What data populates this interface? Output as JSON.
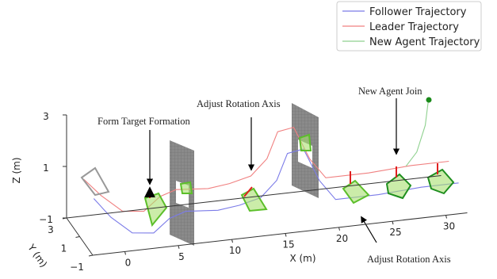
{
  "chart_data": {
    "type": "line3d",
    "xlabel": "X (m)",
    "ylabel": "Y (m)",
    "zlabel": "Z (m)",
    "xlim": [
      -3,
      32
    ],
    "ylim": [
      -1,
      3
    ],
    "zlim": [
      -1,
      3
    ],
    "xticks": [
      0,
      5,
      10,
      15,
      20,
      25,
      30
    ],
    "yticks": [
      {
        "value": -1,
        "label": "−1"
      },
      1,
      3
    ],
    "zticks": [
      {
        "value": -1,
        "label": "−1"
      },
      1,
      3
    ],
    "legend": "upper right",
    "series": [
      {
        "name": "Follower Trajectory",
        "color": "#7b7be8",
        "x": [
          -2.6,
          -1,
          1,
          3,
          4.5,
          6,
          9,
          11,
          13,
          14.5,
          15.5,
          17,
          18.5,
          20,
          24,
          28,
          31.5
        ],
        "y": [
          -0.5,
          -0.5,
          -0.5,
          -0.5,
          -0.5,
          -0.5,
          -0.5,
          -0.5,
          -0.5,
          -0.5,
          -0.5,
          -0.5,
          -0.5,
          -0.5,
          -0.5,
          -0.5,
          -0.5
        ],
        "z": [
          1.0,
          0.2,
          -0.5,
          -0.6,
          -0.1,
          0.1,
          0.0,
          0.1,
          0.3,
          0.9,
          1.9,
          2.0,
          0.7,
          -0.1,
          -0.1,
          0.0,
          0.0
        ]
      },
      {
        "name": "Leader Trajectory",
        "color": "#f08080",
        "x": [
          -2.6,
          -1,
          1,
          3,
          4.5,
          6,
          9,
          11,
          13,
          14.5,
          15.5,
          17,
          18.5,
          20,
          24,
          28,
          31.5
        ],
        "y": [
          1,
          1,
          1,
          1,
          1,
          1,
          1,
          1,
          1,
          1,
          1,
          1,
          1,
          1,
          1,
          1,
          1
        ],
        "z": [
          1.2,
          0.5,
          -0.2,
          -0.3,
          0.2,
          0.4,
          0.3,
          0.4,
          0.6,
          1.2,
          2.2,
          2.3,
          1.0,
          0.2,
          0.2,
          0.3,
          0.3
        ]
      },
      {
        "name": "New Agent Trajectory",
        "color": "#8fd18f",
        "x": [
          29.6,
          29.3,
          28.5,
          27.5
        ],
        "y": [
          1,
          1,
          1,
          1
        ],
        "z": [
          2.8,
          1.8,
          0.8,
          0.3
        ]
      }
    ],
    "annotations": [
      "Form Target Formation",
      "Adjust Rotation Axis",
      "New Agent Join",
      "Adjust Rotation Axis"
    ]
  }
}
